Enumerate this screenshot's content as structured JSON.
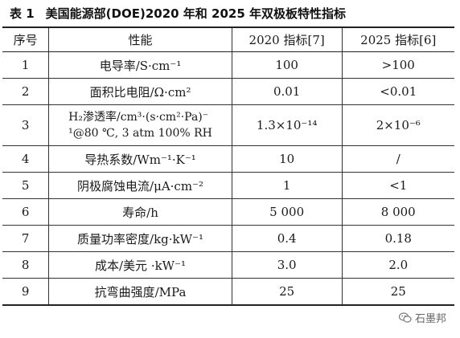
{
  "caption": {
    "table_number": "表 1",
    "title": "美国能源部(DOE)2020 年和 2025 年双极板特性指标"
  },
  "header": {
    "col_no": "序号",
    "col_property": "性能",
    "col_2020": "2020 指标[7]",
    "col_2025": "2025 指标[6]"
  },
  "rows": [
    {
      "no": "1",
      "property": "电导率/S·cm⁻¹",
      "v2020": "100",
      "v2025": ">100"
    },
    {
      "no": "2",
      "property": "面积比电阻/Ω·cm²",
      "v2020": "0.01",
      "v2025": "<0.01"
    },
    {
      "no": "3",
      "property_line1": "H₂渗透率/cm³·(s·cm²·Pa)⁻",
      "property_line2": "¹@80 ℃, 3 atm 100% RH",
      "v2020": "1.3×10⁻¹⁴",
      "v2025": "2×10⁻⁶"
    },
    {
      "no": "4",
      "property": "导热系数/Wm⁻¹·K⁻¹",
      "v2020": "10",
      "v2025": "/"
    },
    {
      "no": "5",
      "property": "阴极腐蚀电流/μA·cm⁻²",
      "v2020": "1",
      "v2025": "<1"
    },
    {
      "no": "6",
      "property": "寿命/h",
      "v2020": "5 000",
      "v2025": "8 000"
    },
    {
      "no": "7",
      "property": "质量功率密度/kg·kW⁻¹",
      "v2020": "0.4",
      "v2025": "0.18"
    },
    {
      "no": "8",
      "property": "成本/美元 ·kW⁻¹",
      "v2020": "3.0",
      "v2025": "2.0"
    },
    {
      "no": "9",
      "property": "抗弯曲强度/MPa",
      "v2020": "25",
      "v2025": "25"
    }
  ],
  "watermark": {
    "icon": "wechat-icon",
    "text": "石墨邦"
  }
}
